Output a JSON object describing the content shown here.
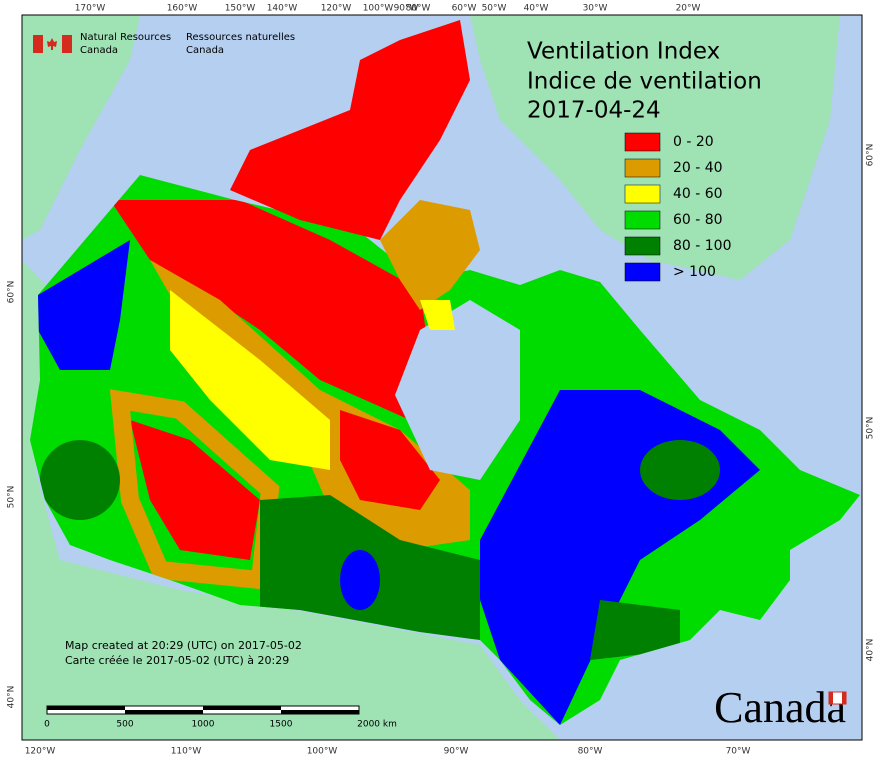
{
  "header": {
    "agency_en": [
      "Natural Resources",
      "Canada"
    ],
    "agency_fr": [
      "Ressources naturelles",
      "Canada"
    ]
  },
  "title": [
    "Ventilation Index",
    "Indice de ventilation",
    "2017-04-24"
  ],
  "legend": [
    {
      "label": "0 - 20",
      "color": "#ff0000"
    },
    {
      "label": "20 - 40",
      "color": "#dc9c00"
    },
    {
      "label": "40 - 60",
      "color": "#ffff00"
    },
    {
      "label": "60 - 80",
      "color": "#00dc00"
    },
    {
      "label": "80 - 100",
      "color": "#008000"
    },
    {
      "label": "> 100",
      "color": "#0000ff"
    }
  ],
  "graticule": {
    "top": [
      "170°W",
      "160°W",
      "150°W",
      "140°W",
      "120°W",
      "100°W",
      "90°W",
      "80°W",
      "60°W",
      "50°W",
      "40°W",
      "30°W",
      "20°W"
    ],
    "bottom": [
      "120°W",
      "110°W",
      "100°W",
      "90°W",
      "80°W",
      "70°W"
    ],
    "left": [
      "60°N",
      "50°N",
      "40°N"
    ],
    "right": [
      "60°N",
      "50°N",
      "40°N"
    ]
  },
  "notes": [
    "Map created at 20:29 (UTC) on 2017-05-02",
    "Carte créée le 2017-05-02 (UTC) à 20:29"
  ],
  "scale_bar": [
    "0",
    "500",
    "1000",
    "1500",
    "2000 km"
  ],
  "wordmark": "Canada"
}
